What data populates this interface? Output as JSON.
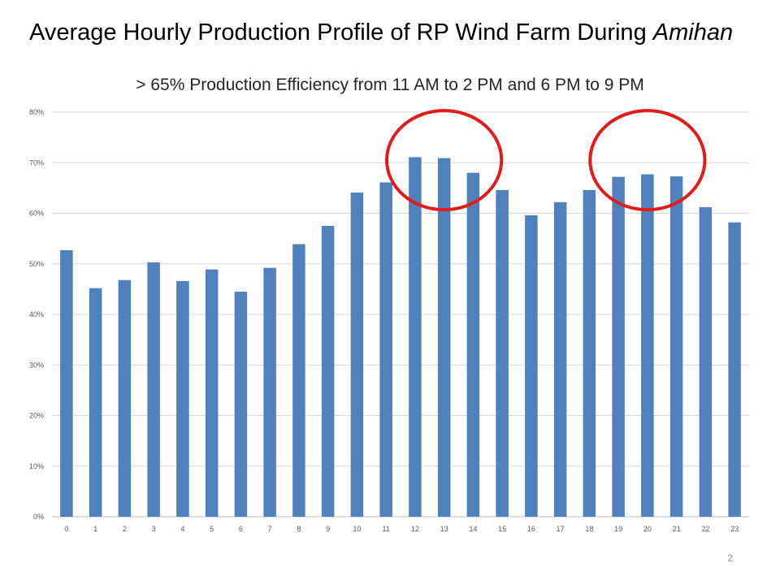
{
  "slide": {
    "title_main": "Average Hourly Production Profile of RP Wind Farm During ",
    "title_emphasis": "Amihan",
    "page_number": "2"
  },
  "chart_data": {
    "type": "bar",
    "title": "> 65% Production Efficiency from 11 AM to 2 PM and 6 PM to 9 PM",
    "xlabel": "",
    "ylabel": "",
    "ylim": [
      0,
      0.8
    ],
    "yticks": [
      "0%",
      "10%",
      "20%",
      "30%",
      "40%",
      "50%",
      "60%",
      "70%",
      "80%"
    ],
    "grid": true,
    "legend": "none",
    "categories": [
      "0",
      "1",
      "2",
      "3",
      "4",
      "5",
      "6",
      "7",
      "8",
      "9",
      "10",
      "11",
      "12",
      "13",
      "14",
      "15",
      "16",
      "17",
      "18",
      "19",
      "20",
      "21",
      "22",
      "23"
    ],
    "values": [
      0.527,
      0.452,
      0.468,
      0.503,
      0.466,
      0.489,
      0.445,
      0.492,
      0.539,
      0.575,
      0.641,
      0.661,
      0.711,
      0.709,
      0.68,
      0.646,
      0.596,
      0.622,
      0.646,
      0.672,
      0.677,
      0.673,
      0.612,
      0.582
    ],
    "highlight_ranges": [
      [
        12,
        14
      ],
      [
        19,
        21
      ]
    ],
    "colors": {
      "bar": "#4f81bd",
      "highlight": "#e31b1b",
      "grid": "#d9d9d9",
      "axis": "#bfbfbf"
    }
  }
}
